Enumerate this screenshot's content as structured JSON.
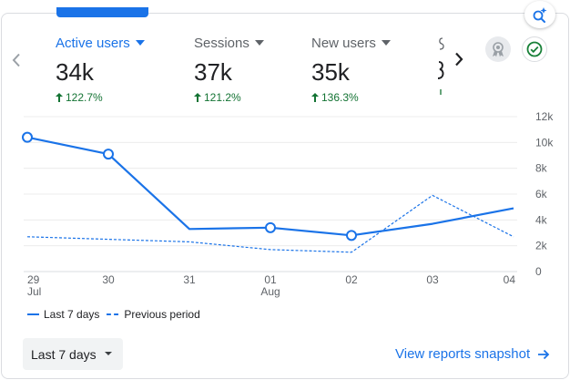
{
  "metrics": [
    {
      "label": "Active users",
      "value": "34k",
      "change": "122.7%"
    },
    {
      "label": "Sessions",
      "value": "37k",
      "change": "121.2%"
    },
    {
      "label": "New users",
      "value": "35k",
      "change": "136.3%"
    }
  ],
  "chart_data": {
    "type": "line",
    "x": [
      "29 Jul",
      "30",
      "31",
      "01 Aug",
      "02",
      "03",
      "04"
    ],
    "x_tick_labels": [
      {
        "day": "29",
        "month": "Jul"
      },
      {
        "day": "30",
        "month": ""
      },
      {
        "day": "31",
        "month": ""
      },
      {
        "day": "01",
        "month": "Aug"
      },
      {
        "day": "02",
        "month": ""
      },
      {
        "day": "03",
        "month": ""
      },
      {
        "day": "04",
        "month": ""
      }
    ],
    "y_ticks": [
      "0",
      "2k",
      "4k",
      "6k",
      "8k",
      "10k",
      "12k"
    ],
    "ylim": [
      0,
      12000
    ],
    "y_axis_position": "right",
    "grid": true,
    "legend_position": "bottom-left",
    "series": [
      {
        "name": "Last 7 days",
        "style": "solid",
        "values": [
          10400,
          9100,
          3300,
          3400,
          2800,
          3700,
          4900
        ]
      },
      {
        "name": "Previous period",
        "style": "dashed",
        "values": [
          2700,
          2500,
          2300,
          1700,
          1500,
          5900,
          2700
        ]
      }
    ],
    "marked_points_series": 0,
    "marked_points_indices": [
      0,
      1,
      3,
      4
    ],
    "color": "#1a73e8"
  },
  "controls": {
    "range_label": "Last 7 days",
    "snapshot_link": "View reports snapshot"
  },
  "colors": {
    "accent": "#1a73e8",
    "positive": "#137333",
    "grid": "#e8eaed"
  },
  "icons": {
    "insights": "insights-sparkle-search-icon",
    "left": "chevron-left-icon",
    "right": "chevron-right-icon",
    "badge": "award-badge-icon",
    "status": "check-circle-icon",
    "arrow": "arrow-forward-icon",
    "up": "arrow-upward-icon",
    "dropdown": "caret-down-icon"
  }
}
